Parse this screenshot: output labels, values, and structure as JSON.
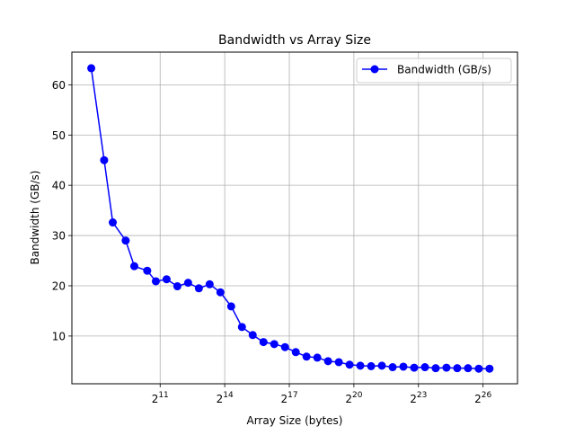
{
  "chart_data": {
    "type": "line",
    "title": "Bandwidth vs Array Size",
    "xlabel": "Array Size (bytes)",
    "ylabel": "Bandwidth (GB/s)",
    "x_scale": "log2",
    "xlim_exponent": [
      6.9,
      27.6
    ],
    "ylim": [
      0.5,
      66.5
    ],
    "grid": true,
    "legend_position": "top-right",
    "x_ticks": [
      {
        "base": "2",
        "exp": "11",
        "value_exp": 11
      },
      {
        "base": "2",
        "exp": "14",
        "value_exp": 14
      },
      {
        "base": "2",
        "exp": "17",
        "value_exp": 17
      },
      {
        "base": "2",
        "exp": "20",
        "value_exp": 20
      },
      {
        "base": "2",
        "exp": "23",
        "value_exp": 23
      },
      {
        "base": "2",
        "exp": "26",
        "value_exp": 26
      }
    ],
    "y_ticks": [
      "10",
      "20",
      "30",
      "40",
      "50",
      "60"
    ],
    "series": [
      {
        "name": "Bandwidth (GB/s)",
        "color": "#0000ff",
        "marker": "circle",
        "x_exponent": [
          7.8,
          8.4,
          8.8,
          9.4,
          9.8,
          10.4,
          10.8,
          11.3,
          11.8,
          12.3,
          12.8,
          13.3,
          13.8,
          14.3,
          14.8,
          15.3,
          15.8,
          16.3,
          16.8,
          17.3,
          17.8,
          18.3,
          18.8,
          19.3,
          19.8,
          20.3,
          20.8,
          21.3,
          21.8,
          22.3,
          22.8,
          23.3,
          23.8,
          24.3,
          24.8,
          25.3,
          25.8,
          26.3
        ],
        "y": [
          63.3,
          45.0,
          32.6,
          29.0,
          23.9,
          23.0,
          20.9,
          21.3,
          19.9,
          20.6,
          19.5,
          20.3,
          18.7,
          15.9,
          11.8,
          10.2,
          8.8,
          8.4,
          7.8,
          6.8,
          5.9,
          5.7,
          5.0,
          4.8,
          4.3,
          4.1,
          4.0,
          4.1,
          3.8,
          3.9,
          3.7,
          3.8,
          3.6,
          3.7,
          3.6,
          3.6,
          3.5,
          3.5
        ]
      }
    ]
  }
}
